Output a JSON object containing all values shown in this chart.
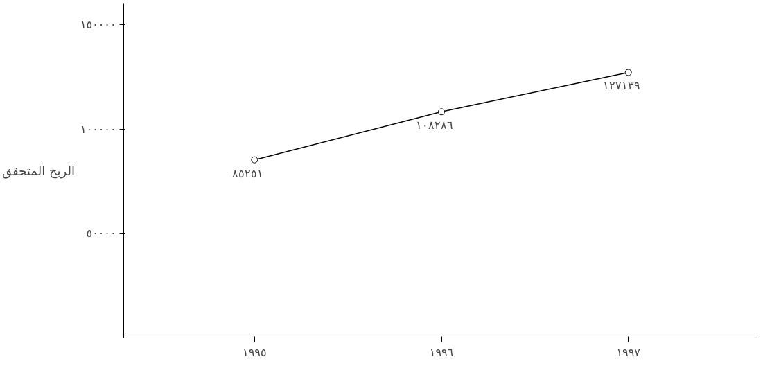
{
  "chart_data": {
    "type": "line",
    "ylabel": "الربح المتحقق",
    "categories": [
      "١٩٩٥",
      "١٩٩٦",
      "١٩٩٧"
    ],
    "values": [
      85251,
      108286,
      127139
    ],
    "value_labels": [
      "٨٥٢٥١",
      "١٠٨٢٨٦",
      "١٢٧١٣٩"
    ],
    "color": "#000000",
    "marker": "circle",
    "line_style": "solid",
    "grid": false,
    "ylim": [
      0,
      160000
    ],
    "yticks": [
      {
        "value": 50000,
        "label": "٥٠٠٠٠"
      },
      {
        "value": 100000,
        "label": "١٠٠٠٠٠"
      },
      {
        "value": 150000,
        "label": "١٥٠٠٠٠"
      }
    ]
  }
}
